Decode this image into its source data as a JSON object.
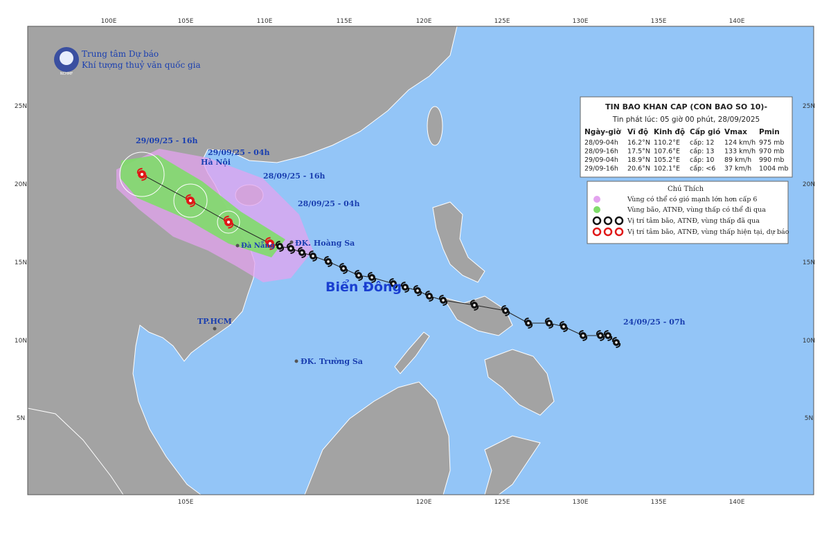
{
  "header": {
    "line1": "Trung tâm Dự báo",
    "line2": "Khí tượng thuỷ văn quốc gia",
    "logo": "NCHMF"
  },
  "grid": {
    "top": [
      "100E",
      "105E",
      "110E",
      "115E",
      "120E",
      "125E",
      "130E",
      "135E",
      "140E"
    ],
    "bottom": [
      "105E",
      "120E",
      "125E",
      "130E",
      "135E",
      "140E"
    ],
    "left": [
      "25N",
      "20N",
      "15N",
      "10N",
      "5N"
    ],
    "right": [
      "25N",
      "20N",
      "15N",
      "10N",
      "5N"
    ]
  },
  "bulletin": {
    "title": "TIN BAO KHAN CAP (CON BAO SO 10)-",
    "issued": "Tin phát lúc: 05 giờ 00 phút, 28/09/2025",
    "columns": [
      "Ngày-giờ",
      "Vĩ độ",
      "Kinh độ",
      "Cấp gió",
      "Vmax",
      "Pmin"
    ],
    "rows": [
      [
        "28/09-04h",
        "16.2°N",
        "110.2°E",
        "cấp: 12",
        "124 km/h",
        "975 mb"
      ],
      [
        "28/09-16h",
        "17.5°N",
        "107.6°E",
        "cấp: 13",
        "133 km/h",
        "970 mb"
      ],
      [
        "29/09-04h",
        "18.9°N",
        "105.2°E",
        "cấp: 10",
        "89 km/h",
        "990 mb"
      ],
      [
        "29/09-16h",
        "20.6°N",
        "102.1°E",
        "cấp: <6",
        "37 km/h",
        "1004 mb"
      ]
    ]
  },
  "legend": {
    "title": "Chú Thích",
    "items": [
      "Vùng có thể có gió mạnh lớn hơn cấp 6",
      "Vùng bão, ATNĐ, vùng thấp có thể đi qua",
      "Vị trí tâm bão, ATNĐ, vùng thấp đã qua",
      "Vị trí tâm bão, ATNĐ, vùng thấp hiện tại, dự báo"
    ]
  },
  "places": {
    "hanoi": "Hà Nội",
    "danang": "Đà Nẵng",
    "hoangsa": "ĐK. Hoàng Sa",
    "hcm": "TP.HCM",
    "truongsa": "ĐK. Trường Sa",
    "sea": "Biển Đông"
  },
  "track_labels": [
    "29/09/25 - 16h",
    "29/09/25 - 04h",
    "28/09/25 - 16h",
    "28/09/25 - 04h",
    "24/09/25 - 07h"
  ]
}
